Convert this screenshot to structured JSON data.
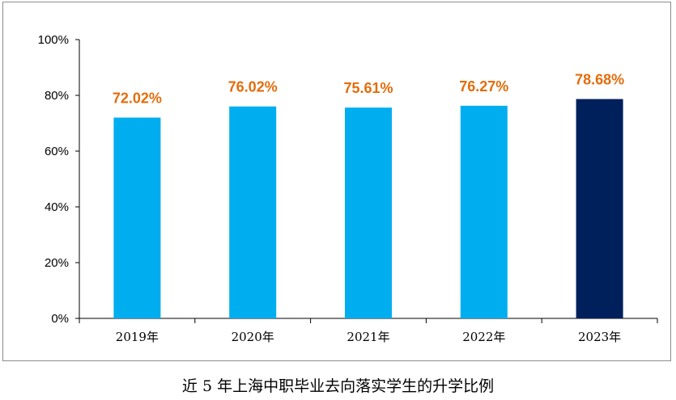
{
  "caption": "近 5 年上海中职毕业去向落实学生的升学比例",
  "colors": {
    "bar": "#00aeef",
    "highlight_bar": "#00205b",
    "data_label": "#e46c0a",
    "axis": "#000000"
  },
  "chart_data": {
    "type": "bar",
    "categories": [
      "2019年",
      "2020年",
      "2021年",
      "2022年",
      "2023年"
    ],
    "values": [
      72.02,
      76.02,
      75.61,
      76.27,
      78.68
    ],
    "data_labels": [
      "72.02%",
      "76.02%",
      "75.61%",
      "76.27%",
      "78.68%"
    ],
    "highlight_index": 4,
    "ylim": [
      0,
      100
    ],
    "yticks": [
      0,
      20,
      40,
      60,
      80,
      100
    ],
    "ytick_labels": [
      "0%",
      "20%",
      "40%",
      "60%",
      "80%",
      "100%"
    ],
    "title": "",
    "xlabel": "",
    "ylabel": "",
    "grid": false,
    "legend": "none"
  }
}
